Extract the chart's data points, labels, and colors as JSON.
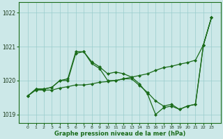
{
  "x": [
    0,
    1,
    2,
    3,
    4,
    5,
    6,
    7,
    8,
    9,
    10,
    11,
    12,
    13,
    14,
    15,
    16,
    17,
    18,
    19,
    20,
    21,
    22,
    23
  ],
  "line1": [
    1019.55,
    1019.75,
    1019.75,
    1019.8,
    1020.0,
    1020.05,
    1020.85,
    1020.85,
    1020.5,
    1020.35,
    1020.0,
    1020.0,
    1020.05,
    1020.05,
    1019.85,
    1019.65,
    1019.4,
    1019.25,
    1019.3,
    1019.15,
    1019.25,
    1019.3,
    1021.05,
    1021.85
  ],
  "line2": [
    1019.55,
    1019.75,
    1019.75,
    1019.8,
    1020.0,
    1020.0,
    1020.8,
    1020.85,
    1020.55,
    1020.4,
    1020.2,
    1020.25,
    1020.2,
    1020.1,
    1019.9,
    1019.6,
    1019.0,
    1019.2,
    1019.25,
    1019.15,
    1019.25,
    1019.3,
    1021.05,
    1021.85
  ],
  "line3": [
    1019.55,
    1019.72,
    1019.72,
    1019.72,
    1019.78,
    1019.82,
    1019.87,
    1019.87,
    1019.9,
    1019.95,
    1019.97,
    1020.0,
    1020.05,
    1020.1,
    1020.15,
    1020.2,
    1020.3,
    1020.38,
    1020.42,
    1020.48,
    1020.53,
    1020.6,
    1021.05,
    1021.85
  ],
  "ylim": [
    1018.75,
    1022.3
  ],
  "yticks": [
    1019,
    1020,
    1021,
    1022
  ],
  "xticks": [
    0,
    1,
    2,
    3,
    4,
    5,
    6,
    7,
    8,
    9,
    10,
    11,
    12,
    13,
    14,
    15,
    16,
    17,
    18,
    19,
    20,
    21,
    22,
    23
  ],
  "line_color": "#1a6b1a",
  "bg_color": "#cce8e8",
  "grid_color": "#99cccc",
  "xlabel": "Graphe pression niveau de la mer (hPa)",
  "marker": "D",
  "marker_size": 2.0,
  "linewidth": 0.9
}
